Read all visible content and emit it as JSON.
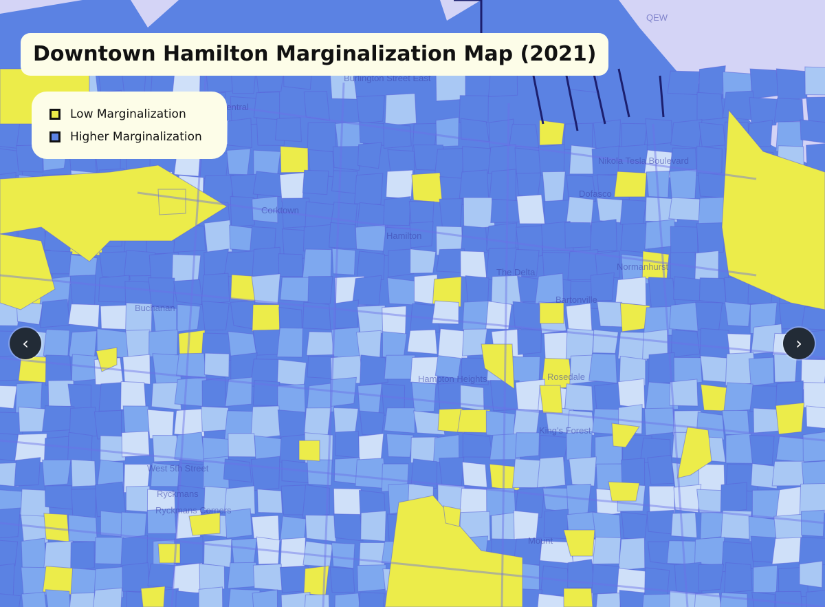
{
  "title": "Downtown Hamilton Marginalization Map (2021)",
  "legend": {
    "items": [
      {
        "label": "Low Marginalization",
        "color": "#ecec4a"
      },
      {
        "label": "Higher Marginalization",
        "color": "#5b82e3"
      }
    ]
  },
  "colors": {
    "water": "#d4d4f6",
    "low": "#ecec4a",
    "light_blue": "#cfe0f9",
    "pale_blue": "#a9c8f4",
    "mid_blue": "#7ea8ef",
    "high_blue": "#5b82e3",
    "boundary": "#5a63d8"
  },
  "map_labels": [
    "Central",
    "Burlington Street East",
    "Nikola Tesla Boulevard",
    "Dofasco",
    "Hamilton",
    "Corktown",
    "Normanhurst",
    "The Delta",
    "Bartonville",
    "Buchanan",
    "Hampton Heights",
    "Rosedale",
    "King's Forest",
    "Ryckmans",
    "Ryckmans Corners",
    "West 5th Street",
    "Mount",
    "QEW"
  ],
  "nav": {
    "prev_icon": "chevron-left-icon",
    "next_icon": "chevron-right-icon",
    "prev": "‹",
    "next": "›"
  }
}
